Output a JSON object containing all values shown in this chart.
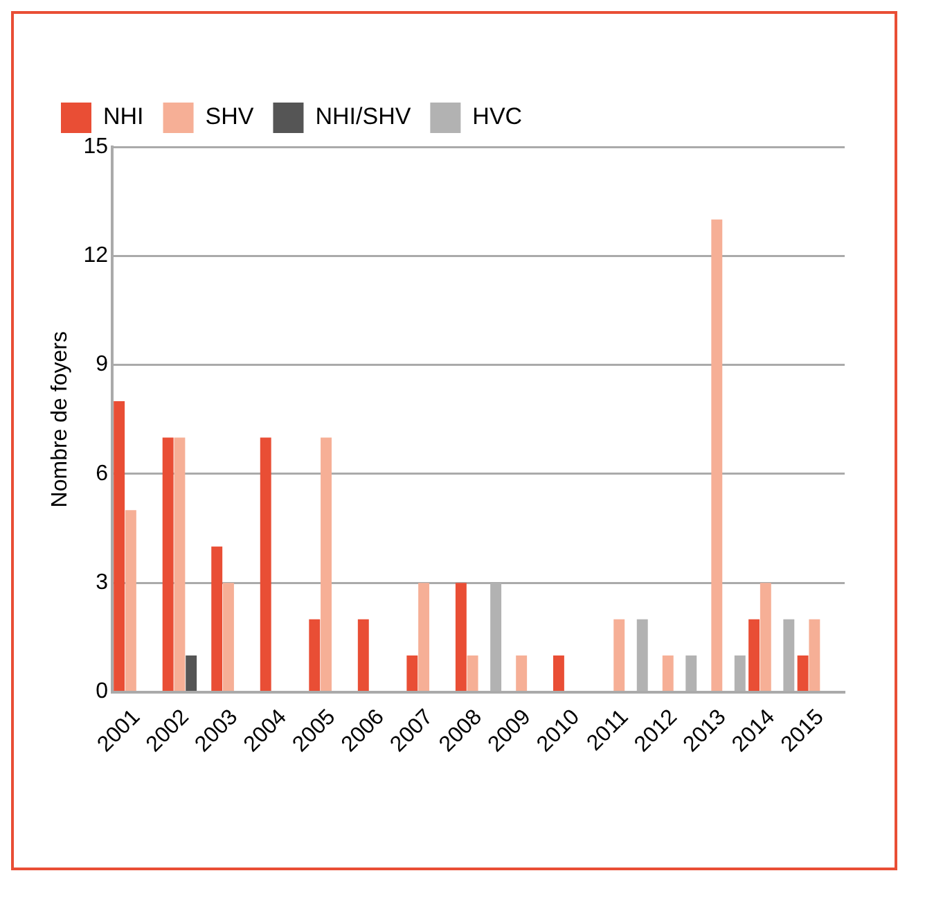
{
  "chart_data": {
    "type": "bar",
    "ylabel": "Nombre de foyers",
    "categories": [
      "2001",
      "2002",
      "2003",
      "2004",
      "2005",
      "2006",
      "2007",
      "2008",
      "2009",
      "2010",
      "2011",
      "2012",
      "2013",
      "2014",
      "2015"
    ],
    "series": [
      {
        "name": "NHI",
        "color": "#e94e35",
        "values": [
          8,
          7,
          4,
          7,
          2,
          2,
          1,
          3,
          0,
          1,
          0,
          0,
          0,
          2,
          1
        ]
      },
      {
        "name": "SHV",
        "color": "#f6af96",
        "values": [
          5,
          7,
          3,
          0,
          7,
          0,
          3,
          1,
          1,
          0,
          2,
          1,
          13,
          3,
          2
        ]
      },
      {
        "name": "NHI/SHV",
        "color": "#555555",
        "values": [
          0,
          1,
          0,
          0,
          0,
          0,
          0,
          0,
          0,
          0,
          0,
          0,
          0,
          0,
          0
        ]
      },
      {
        "name": "HVC",
        "color": "#b2b2b2",
        "values": [
          0,
          0,
          0,
          0,
          0,
          0,
          0,
          3,
          0,
          0,
          2,
          1,
          1,
          2,
          0
        ]
      }
    ],
    "ylim": [
      0,
      15
    ],
    "yticks": [
      0,
      3,
      6,
      9,
      12,
      15
    ],
    "grid": "y",
    "legend": "top left"
  }
}
